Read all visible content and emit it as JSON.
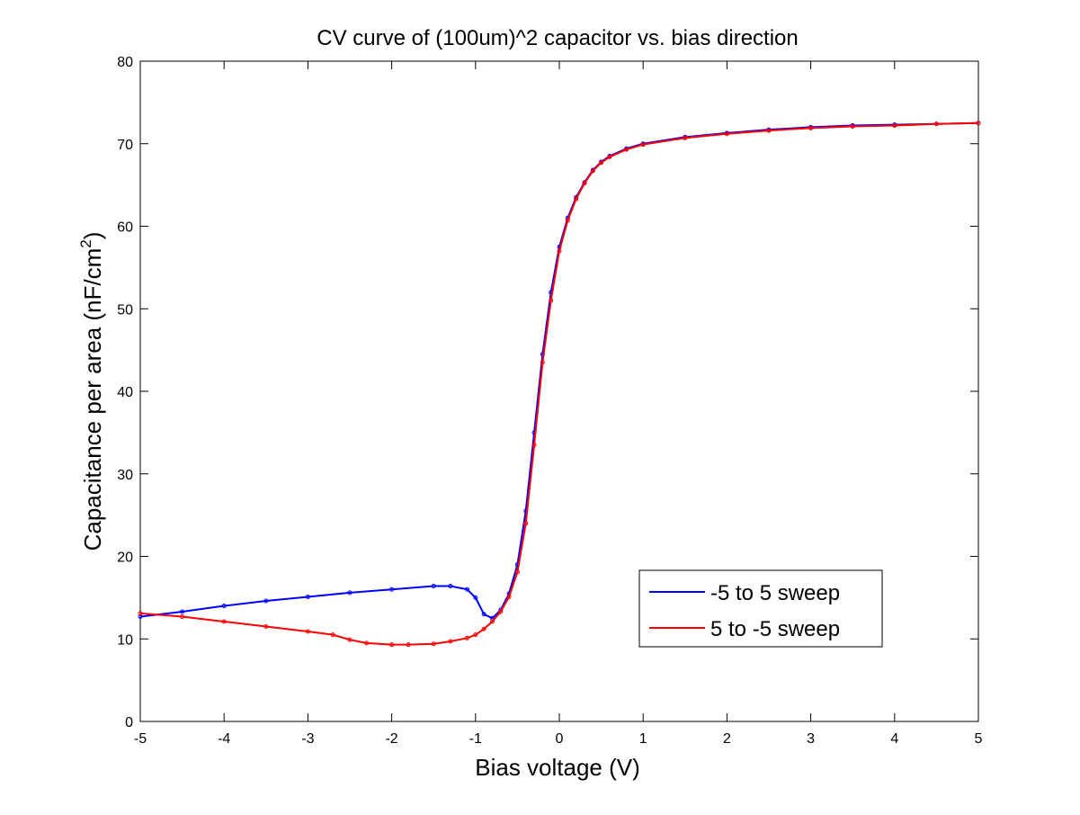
{
  "chart_data": {
    "type": "line",
    "title": "CV curve of (100um)^2 capacitor vs. bias direction",
    "xlabel": "Bias voltage (V)",
    "ylabel": "Capacitance per area (nF/cm",
    "ylabel_superscript": "2",
    "ylabel_suffix": ")",
    "xlim": [
      -5,
      5
    ],
    "ylim": [
      0,
      80
    ],
    "xticks": [
      -5,
      -4,
      -3,
      -2,
      -1,
      0,
      1,
      2,
      3,
      4,
      5
    ],
    "yticks": [
      0,
      10,
      20,
      30,
      40,
      50,
      60,
      70,
      80
    ],
    "grid": false,
    "legend_position": "lower-right",
    "series": [
      {
        "name": "-5 to 5 sweep",
        "color": "#0000ff",
        "x": [
          -5.0,
          -4.5,
          -4.0,
          -3.5,
          -3.0,
          -2.5,
          -2.0,
          -1.5,
          -1.3,
          -1.1,
          -1.0,
          -0.9,
          -0.8,
          -0.7,
          -0.6,
          -0.5,
          -0.4,
          -0.3,
          -0.2,
          -0.1,
          0.0,
          0.1,
          0.2,
          0.3,
          0.4,
          0.5,
          0.6,
          0.8,
          1.0,
          1.5,
          2.0,
          2.5,
          3.0,
          3.5,
          4.0,
          4.5,
          5.0
        ],
        "y": [
          12.7,
          13.3,
          14.0,
          14.6,
          15.1,
          15.6,
          16.0,
          16.4,
          16.4,
          16.0,
          15.0,
          13.0,
          12.5,
          13.5,
          15.5,
          19.0,
          25.5,
          35.0,
          44.5,
          52.0,
          57.5,
          61.0,
          63.5,
          65.3,
          66.8,
          67.8,
          68.5,
          69.4,
          70.0,
          70.8,
          71.3,
          71.7,
          72.0,
          72.2,
          72.3,
          72.4,
          72.5
        ]
      },
      {
        "name": "5 to -5 sweep",
        "color": "#ff0000",
        "x": [
          -5.0,
          -4.5,
          -4.0,
          -3.5,
          -3.0,
          -2.7,
          -2.5,
          -2.3,
          -2.0,
          -1.8,
          -1.5,
          -1.3,
          -1.1,
          -1.0,
          -0.9,
          -0.8,
          -0.7,
          -0.6,
          -0.5,
          -0.4,
          -0.3,
          -0.2,
          -0.1,
          0.0,
          0.1,
          0.2,
          0.3,
          0.4,
          0.5,
          0.6,
          0.8,
          1.0,
          1.5,
          2.0,
          2.5,
          3.0,
          3.5,
          4.0,
          4.5,
          5.0
        ],
        "y": [
          13.1,
          12.7,
          12.1,
          11.5,
          10.9,
          10.5,
          9.9,
          9.5,
          9.3,
          9.3,
          9.4,
          9.7,
          10.1,
          10.5,
          11.2,
          12.1,
          13.3,
          15.1,
          18.1,
          24.0,
          33.5,
          43.5,
          51.0,
          57.0,
          60.7,
          63.3,
          65.2,
          66.7,
          67.7,
          68.4,
          69.3,
          69.9,
          70.7,
          71.2,
          71.6,
          71.9,
          72.1,
          72.2,
          72.4,
          72.5
        ]
      }
    ]
  }
}
